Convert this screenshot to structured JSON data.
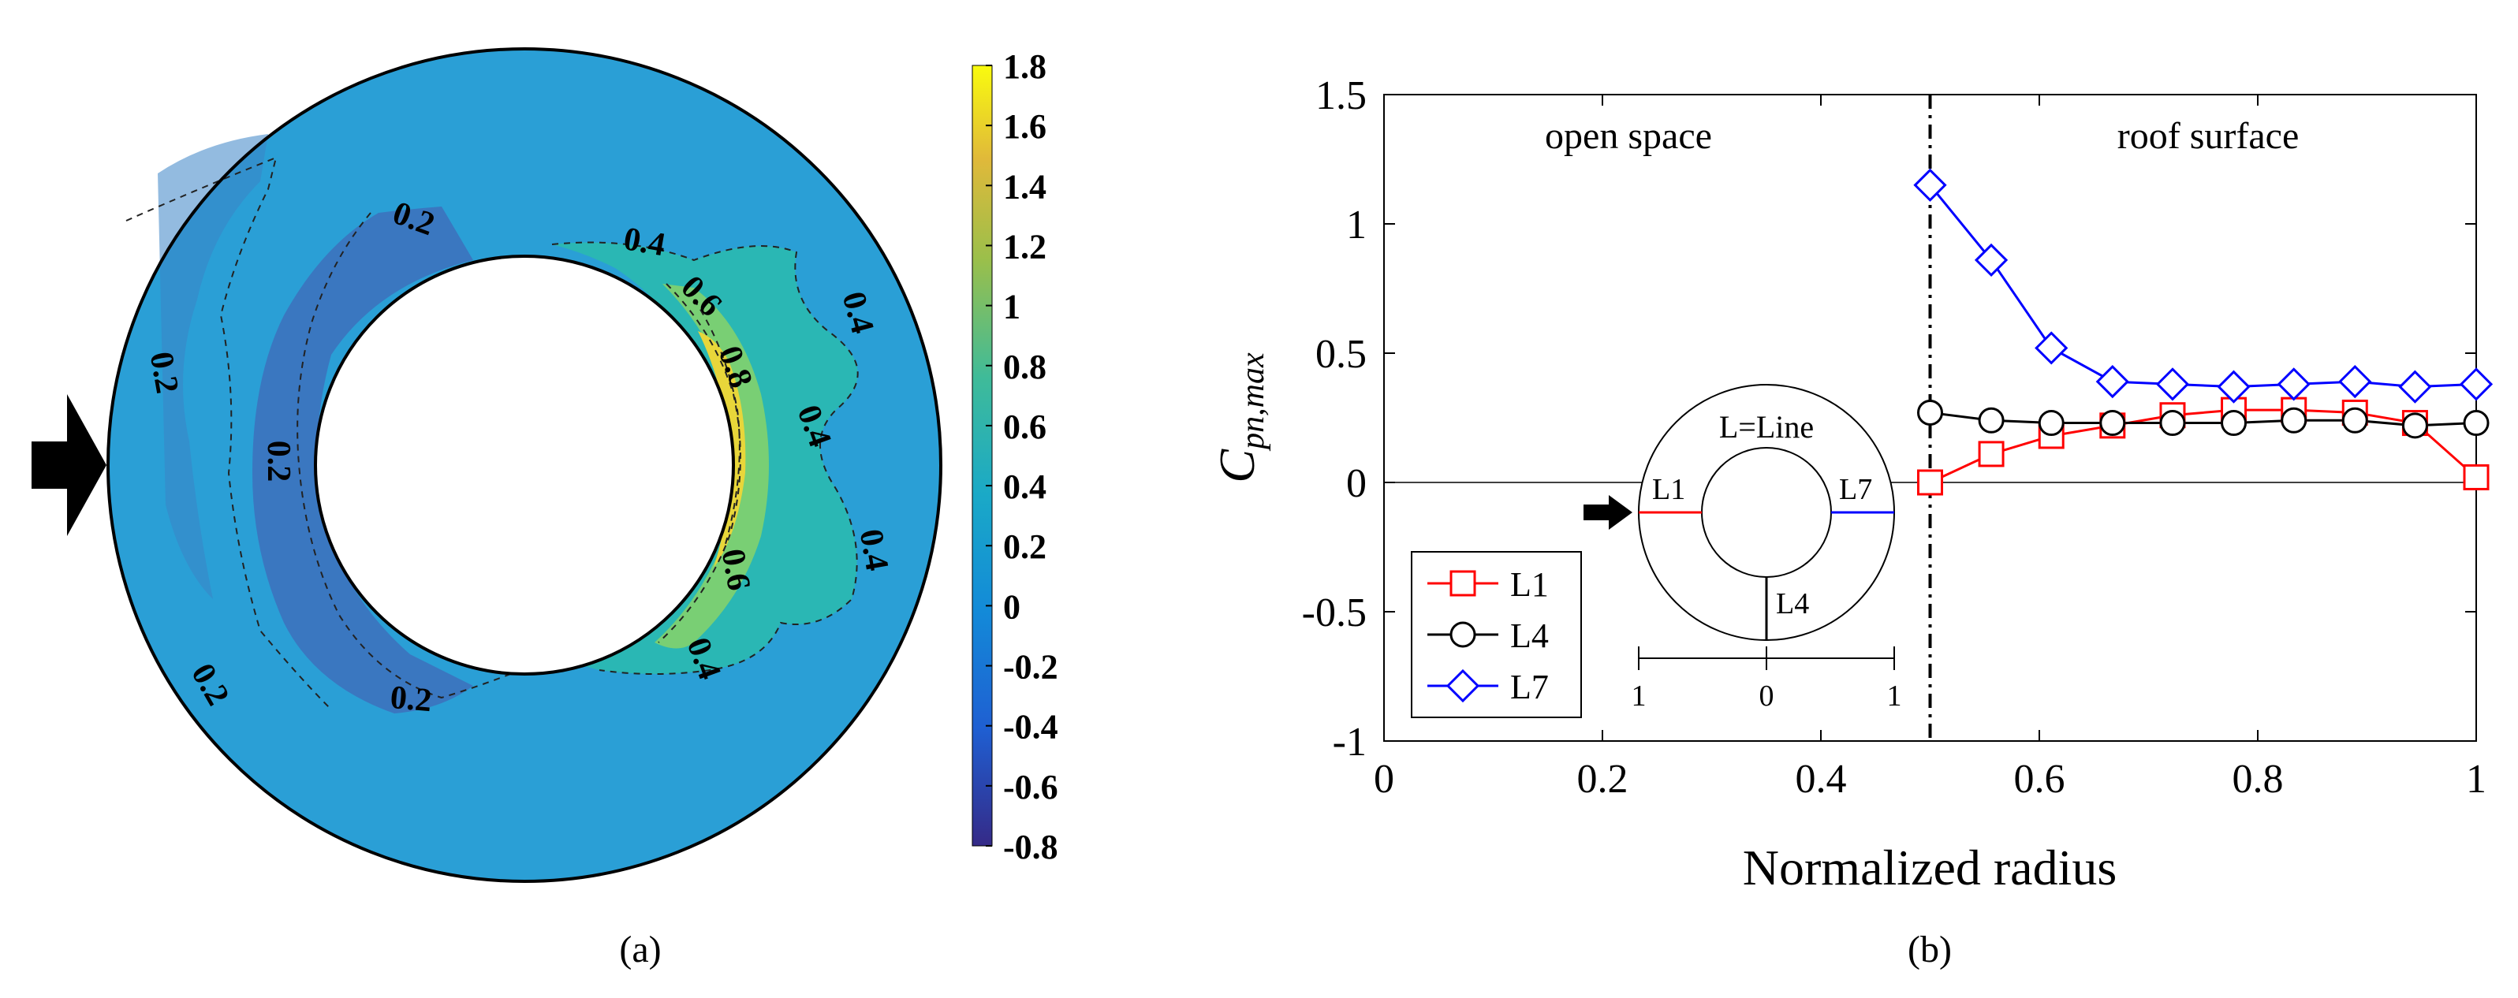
{
  "chart_data": [
    {
      "type": "heatmap",
      "panel_label": "(a)",
      "colorbar": {
        "ticks": [
          "1.8",
          "1.6",
          "1.4",
          "1.2",
          "1",
          "0.8",
          "0.6",
          "0.4",
          "0.2",
          "0",
          "-0.2",
          "-0.4",
          "-0.6",
          "-0.8"
        ],
        "range": [
          -0.8,
          1.8
        ]
      },
      "contour_labels": [
        "0.2",
        "0.2",
        "0.2",
        "0.2",
        "0.2",
        "0.4",
        "0.6",
        "0.8",
        "0.4",
        "0.4",
        "0.4",
        "0.6",
        "0.4"
      ],
      "colors": {
        "field": "#2a9fd6",
        "low_band": "#3a77c0",
        "mid": "#2ab7b4",
        "high": "#c8dc3c",
        "peak": "#f5d530"
      }
    },
    {
      "type": "line",
      "panel_label": "(b)",
      "xlabel": "Normalized radius",
      "ylabel_main": "C",
      "ylabel_sub": "pn,max",
      "xlim": [
        0,
        1
      ],
      "ylim": [
        -1,
        1.5
      ],
      "xticks": [
        "0",
        "0.2",
        "0.4",
        "0.6",
        "0.8",
        "1"
      ],
      "yticks": [
        "-1",
        "-0.5",
        "0",
        "0.5",
        "1",
        "1.5"
      ],
      "region_labels": [
        "open space",
        "roof surface"
      ],
      "divider_x": 0.5,
      "x": [
        0.5,
        0.556,
        0.611,
        0.667,
        0.722,
        0.778,
        0.833,
        0.889,
        0.944,
        1.0
      ],
      "series": [
        {
          "name": "L1",
          "color": "#ff0000",
          "marker": "square",
          "values": [
            0.0,
            0.11,
            0.18,
            0.22,
            0.26,
            0.28,
            0.28,
            0.27,
            0.23,
            0.02
          ]
        },
        {
          "name": "L4",
          "color": "#000000",
          "marker": "circle",
          "values": [
            0.27,
            0.24,
            0.23,
            0.23,
            0.23,
            0.23,
            0.24,
            0.24,
            0.22,
            0.23
          ]
        },
        {
          "name": "L7",
          "color": "#0000ff",
          "marker": "diamond",
          "values": [
            1.15,
            0.86,
            0.52,
            0.39,
            0.38,
            0.37,
            0.38,
            0.39,
            0.37,
            0.38
          ]
        }
      ],
      "inset": {
        "title": "L=Line",
        "line_labels": [
          "L1",
          "L7",
          "L4"
        ],
        "scale_ticks": [
          "1",
          "0",
          "1"
        ]
      }
    }
  ]
}
